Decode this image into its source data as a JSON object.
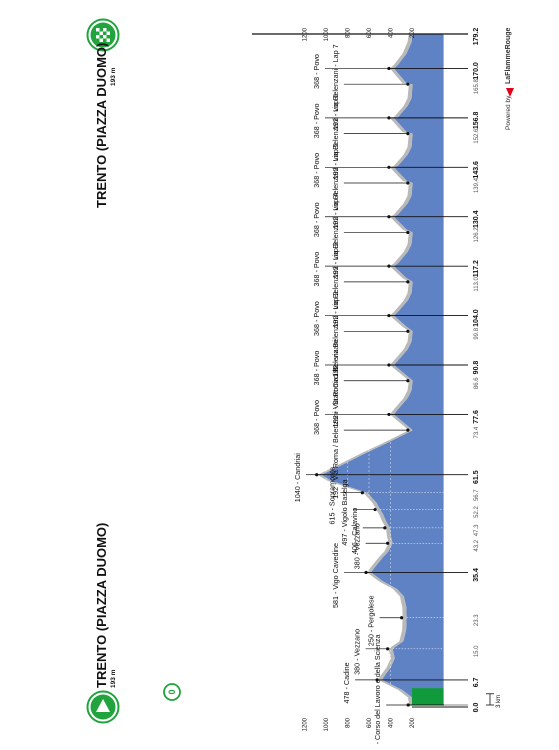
{
  "start": {
    "city": "TRENTO (PIAZZA DUOMO)",
    "altitude": "193 m",
    "zero_marker": "0"
  },
  "finish": {
    "city": "TRENTO (PIAZZA DUOMO)",
    "altitude": "193 m"
  },
  "branding": {
    "powered_by": "Powered by",
    "brand": "LaFlammeRouge",
    "brand_color": "#e2001a"
  },
  "colors": {
    "profile_fill": "#5f82c4",
    "finish_green": "#109a3c",
    "start_green": "#21a33d",
    "gray_band": "#b9b9b9",
    "connector": "#111111"
  },
  "chart_data": {
    "type": "area",
    "xlabel": "",
    "ylabel": "",
    "xlim": [
      0,
      179.2
    ],
    "ylim": [
      0,
      1200
    ],
    "km_scale_label": "3 km",
    "y_ticks": [
      "200",
      "400",
      "600",
      "800",
      "1000",
      "1200"
    ],
    "km_ticks_major": [
      "0.0",
      "6.7",
      "35.4",
      "61.5",
      "77.6",
      "90.8",
      "104.0",
      "117.2",
      "130.4",
      "143.6",
      "156.8",
      "170.0",
      "179.2"
    ],
    "km_ticks_minor": [
      "0.0",
      "15.0",
      "23.3",
      "43.2",
      "47.3",
      "52.2",
      "56.7",
      "73.4",
      "86.6",
      "99.8",
      "113.0",
      "126.2",
      "139.4",
      "152.6",
      "165.8"
    ],
    "profile": [
      [
        0,
        189
      ],
      [
        2,
        200
      ],
      [
        4,
        290
      ],
      [
        6,
        430
      ],
      [
        6.7,
        478
      ],
      [
        8,
        450
      ],
      [
        10,
        400
      ],
      [
        12.5,
        360
      ],
      [
        15,
        380
      ],
      [
        17,
        280
      ],
      [
        20,
        255
      ],
      [
        23.3,
        250
      ],
      [
        26,
        252
      ],
      [
        29,
        275
      ],
      [
        31,
        340
      ],
      [
        33,
        470
      ],
      [
        35.4,
        581
      ],
      [
        37,
        540
      ],
      [
        39.5,
        470
      ],
      [
        41,
        420
      ],
      [
        43.2,
        380
      ],
      [
        45,
        395
      ],
      [
        47.3,
        406
      ],
      [
        49,
        440
      ],
      [
        51,
        470
      ],
      [
        52.2,
        497
      ],
      [
        54,
        530
      ],
      [
        56.7,
        615
      ],
      [
        58,
        760
      ],
      [
        60,
        960
      ],
      [
        61.5,
        1040
      ],
      [
        64,
        860
      ],
      [
        67,
        650
      ],
      [
        70,
        430
      ],
      [
        73.4,
        192
      ],
      [
        75,
        260
      ],
      [
        77.6,
        368
      ],
      [
        79,
        330
      ],
      [
        82,
        240
      ],
      [
        84,
        205
      ],
      [
        86.6,
        192
      ],
      [
        88,
        250
      ],
      [
        90.8,
        368
      ],
      [
        92,
        330
      ],
      [
        95,
        240
      ],
      [
        97,
        205
      ],
      [
        99.8,
        192
      ],
      [
        101,
        250
      ],
      [
        104,
        368
      ],
      [
        105,
        330
      ],
      [
        108,
        240
      ],
      [
        110,
        205
      ],
      [
        113,
        192
      ],
      [
        114,
        250
      ],
      [
        117.2,
        368
      ],
      [
        118,
        330
      ],
      [
        121,
        240
      ],
      [
        123,
        205
      ],
      [
        126.2,
        192
      ],
      [
        127,
        250
      ],
      [
        130.4,
        368
      ],
      [
        131,
        330
      ],
      [
        134,
        240
      ],
      [
        136,
        205
      ],
      [
        139.4,
        192
      ],
      [
        140,
        250
      ],
      [
        143.6,
        368
      ],
      [
        144,
        330
      ],
      [
        147,
        240
      ],
      [
        149,
        205
      ],
      [
        152.6,
        192
      ],
      [
        153,
        250
      ],
      [
        156.8,
        368
      ],
      [
        157,
        330
      ],
      [
        160,
        240
      ],
      [
        162,
        205
      ],
      [
        165.8,
        192
      ],
      [
        166,
        250
      ],
      [
        170,
        368
      ],
      [
        171,
        330
      ],
      [
        174,
        250
      ],
      [
        177,
        205
      ],
      [
        179.2,
        193
      ]
    ],
    "annotations": [
      {
        "km": 0,
        "label": "189 - KM 0 - Corso del Lavoro e della Scienza"
      },
      {
        "km": 6.7,
        "label": "478 - Cadine"
      },
      {
        "km": 15.0,
        "label": "380 - Vezzano"
      },
      {
        "km": 23.3,
        "label": "250 - Pergolese"
      },
      {
        "km": 35.4,
        "label": "581 - Vigo Cavedine"
      },
      {
        "km": 43.2,
        "label": "380 - Vezzano"
      },
      {
        "km": 47.3,
        "label": "406 - Calavino"
      },
      {
        "km": 52.2,
        "label": "497 - Vigolo Baselga"
      },
      {
        "km": 56.7,
        "label": "615 - Sopramonte"
      },
      {
        "km": 61.5,
        "label": "1040 - Candriai"
      },
      {
        "km": 73.4,
        "label": "192 - Via Roma / Belenzani - Start Circuit"
      },
      {
        "km": 77.6,
        "label": "368 - Povo"
      },
      {
        "km": 86.6,
        "label": "192 - Via Roma / Belenzani"
      },
      {
        "km": 90.8,
        "label": "368 - Povo"
      },
      {
        "km": 99.8,
        "label": "192 - via Belenzani - Lap 2"
      },
      {
        "km": 104.0,
        "label": "368 - Povo"
      },
      {
        "km": 113.0,
        "label": "192 - via Belenzani - Lap 3"
      },
      {
        "km": 117.2,
        "label": "368 - Povo"
      },
      {
        "km": 126.2,
        "label": "192 - via Belenzani - Lap 4"
      },
      {
        "km": 130.4,
        "label": "368 - Povo"
      },
      {
        "km": 139.4,
        "label": "192 - via Belenzani - Lap 5"
      },
      {
        "km": 143.6,
        "label": "368 - Povo"
      },
      {
        "km": 152.6,
        "label": "192 - via Belenzani - Lap 6"
      },
      {
        "km": 156.8,
        "label": "368 - Povo"
      },
      {
        "km": 165.8,
        "label": "192 - via Belenzani - Lap 7"
      },
      {
        "km": 170.0,
        "label": "368 - Povo"
      }
    ],
    "climb_markers_km": [
      56.7,
      61.5,
      77.6,
      90.8,
      104.0,
      117.2,
      130.4,
      143.6,
      156.8,
      170.0
    ]
  }
}
